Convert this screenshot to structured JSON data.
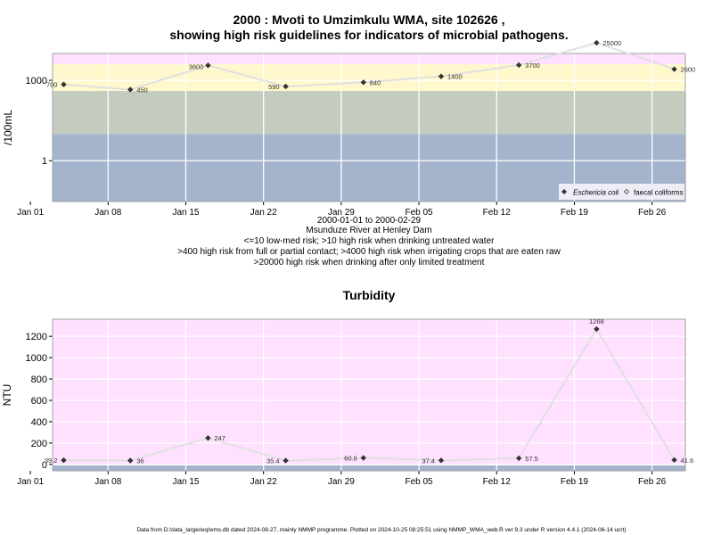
{
  "title_line1": "2000 : Mvoti to Umzimkulu WMA, site 102626 ,",
  "title_line2": "showing high risk guidelines for indicators of microbial pathogens.",
  "subtitle_lines": [
    "2000-01-01 to 2000-02-29",
    "Msunduze River at Henley Dam",
    "<=10 low-med risk; >10 high risk when drinking untreated water",
    ">400 high risk from full or partial contact; >4000 high risk when irrigating crops that are eaten raw",
    ">20000 high risk when drinking after only limited treatment"
  ],
  "footer": "Data from D:/data_large/wq/wms.db dated 2024-08-27, mainly NMMP programme. Plotted on 2024-10-25 08:25:51 using NMMP_WMA_web.R ver 9.3 under R version 4.4.1 (2024-06-14 ucrt)",
  "colors": {
    "band_red": "#FFC0CB",
    "band_pink": "#FFE0FF",
    "band_yellow": "#FFF8CC",
    "band_grey": "#C4CCC0",
    "band_blue": "#A3B4CC",
    "line": "#E0E0E0",
    "point": "#333333"
  },
  "chart_data": [
    {
      "type": "line",
      "ylabel": "/100mL",
      "yscale": "log",
      "ylim": [
        0.03,
        10000
      ],
      "y_ticks": [
        {
          "value": 1,
          "label": "1"
        },
        {
          "value": 1000,
          "label": "1000"
        }
      ],
      "x_ticks": [
        {
          "date": "2000-01-01",
          "label": "Jan 01"
        },
        {
          "date": "2000-01-08",
          "label": "Jan 08"
        },
        {
          "date": "2000-01-15",
          "label": "Jan 15"
        },
        {
          "date": "2000-01-22",
          "label": "Jan 22"
        },
        {
          "date": "2000-01-29",
          "label": "Jan 29"
        },
        {
          "date": "2000-02-05",
          "label": "Feb 05"
        },
        {
          "date": "2000-02-12",
          "label": "Feb 12"
        },
        {
          "date": "2000-02-19",
          "label": "Feb 19"
        },
        {
          "date": "2000-02-26",
          "label": "Feb 26"
        }
      ],
      "xlim": [
        "2000-01-03",
        "2000-02-29"
      ],
      "risk_bands": [
        {
          "from": 0.03,
          "to": 10,
          "color": "band_blue"
        },
        {
          "from": 10,
          "to": 400,
          "color": "band_grey"
        },
        {
          "from": 400,
          "to": 4000,
          "color": "band_yellow"
        },
        {
          "from": 4000,
          "to": 20000,
          "color": "band_pink"
        },
        {
          "from": 20000,
          "to": 10000,
          "color": "band_red"
        }
      ],
      "legend": {
        "position": "bottom-right",
        "entries": [
          "Eschericia coli",
          "faecal coliforms"
        ]
      },
      "series": [
        {
          "name": "Eschericia coli",
          "points": [
            {
              "x": "2000-01-04",
              "y": 700,
              "label": "700"
            },
            {
              "x": "2000-01-10",
              "y": 450,
              "label": "450"
            },
            {
              "x": "2000-01-17",
              "y": 3600,
              "label": "3600"
            },
            {
              "x": "2000-01-24",
              "y": 590,
              "label": "590"
            },
            {
              "x": "2000-01-31",
              "y": 840,
              "label": "840"
            },
            {
              "x": "2000-02-07",
              "y": 1400,
              "label": "1400"
            },
            {
              "x": "2000-02-14",
              "y": 3700,
              "label": "3700"
            },
            {
              "x": "2000-02-21",
              "y": 25000,
              "label": "25000"
            },
            {
              "x": "2000-02-28",
              "y": 2600,
              "label": "2600"
            }
          ]
        }
      ]
    },
    {
      "type": "line",
      "title": "Turbidity",
      "ylabel": "NTU",
      "ylim": [
        -60,
        1360
      ],
      "y_ticks": [
        {
          "value": 0,
          "label": "0"
        },
        {
          "value": 200,
          "label": "200"
        },
        {
          "value": 400,
          "label": "400"
        },
        {
          "value": 600,
          "label": "600"
        },
        {
          "value": 800,
          "label": "800"
        },
        {
          "value": 1000,
          "label": "1000"
        },
        {
          "value": 1200,
          "label": "1200"
        }
      ],
      "x_ticks": [
        {
          "date": "2000-01-01",
          "label": "Jan 01"
        },
        {
          "date": "2000-01-08",
          "label": "Jan 08"
        },
        {
          "date": "2000-01-15",
          "label": "Jan 15"
        },
        {
          "date": "2000-01-22",
          "label": "Jan 22"
        },
        {
          "date": "2000-01-29",
          "label": "Jan 29"
        },
        {
          "date": "2000-02-05",
          "label": "Feb 05"
        },
        {
          "date": "2000-02-12",
          "label": "Feb 12"
        },
        {
          "date": "2000-02-19",
          "label": "Feb 19"
        },
        {
          "date": "2000-02-26",
          "label": "Feb 26"
        }
      ],
      "xlim": [
        "2000-01-03",
        "2000-02-29"
      ],
      "bands": [
        {
          "from": -60,
          "to": -10,
          "color": "band_blue"
        },
        {
          "from": -10,
          "to": 1360,
          "color": "band_pink"
        }
      ],
      "series": [
        {
          "name": "",
          "points": [
            {
              "x": "2000-01-04",
              "y": 39.2,
              "label": "39.2"
            },
            {
              "x": "2000-01-10",
              "y": 36,
              "label": "36"
            },
            {
              "x": "2000-01-17",
              "y": 247,
              "label": "247"
            },
            {
              "x": "2000-01-24",
              "y": 35.4,
              "label": "35.4"
            },
            {
              "x": "2000-01-31",
              "y": 60.6,
              "label": "60.6"
            },
            {
              "x": "2000-02-07",
              "y": 37.4,
              "label": "37.4"
            },
            {
              "x": "2000-02-14",
              "y": 57.5,
              "label": "57.5"
            },
            {
              "x": "2000-02-21",
              "y": 1268,
              "label": "1268"
            },
            {
              "x": "2000-02-28",
              "y": 41.6,
              "label": "41.6"
            }
          ]
        }
      ]
    }
  ]
}
